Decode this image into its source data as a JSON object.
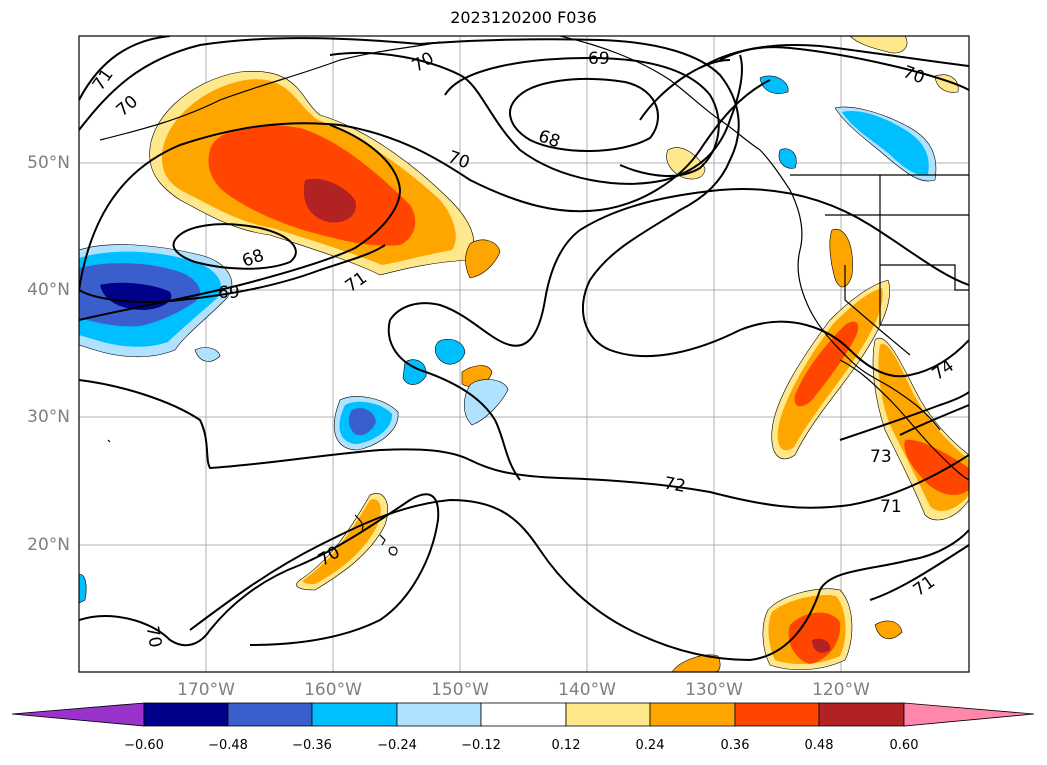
{
  "title": "2023120200 F036",
  "map": {
    "lon_labels": [
      "170°W",
      "160°W",
      "150°W",
      "140°W",
      "130°W",
      "120°W"
    ],
    "lat_labels": [
      "50°N",
      "40°N",
      "30°N",
      "20°N"
    ],
    "contour_labels": [
      "71",
      "70",
      "70",
      "69",
      "68",
      "70",
      "68",
      "69",
      "71",
      "70",
      "72",
      "73",
      "74",
      "71",
      "71",
      "70"
    ]
  },
  "colorbar": {
    "colors": [
      "#9933cc",
      "#00008b",
      "#3a5fcd",
      "#00bfff",
      "#b0e2ff",
      "#ffffff",
      "#ffe78c",
      "#ffa500",
      "#ff4500",
      "#b22222",
      "#ff88aa"
    ],
    "tick_labels": [
      "−0.60",
      "−0.48",
      "−0.36",
      "−0.24",
      "−0.12",
      "0.12",
      "0.24",
      "0.36",
      "0.48",
      "0.60"
    ]
  }
}
